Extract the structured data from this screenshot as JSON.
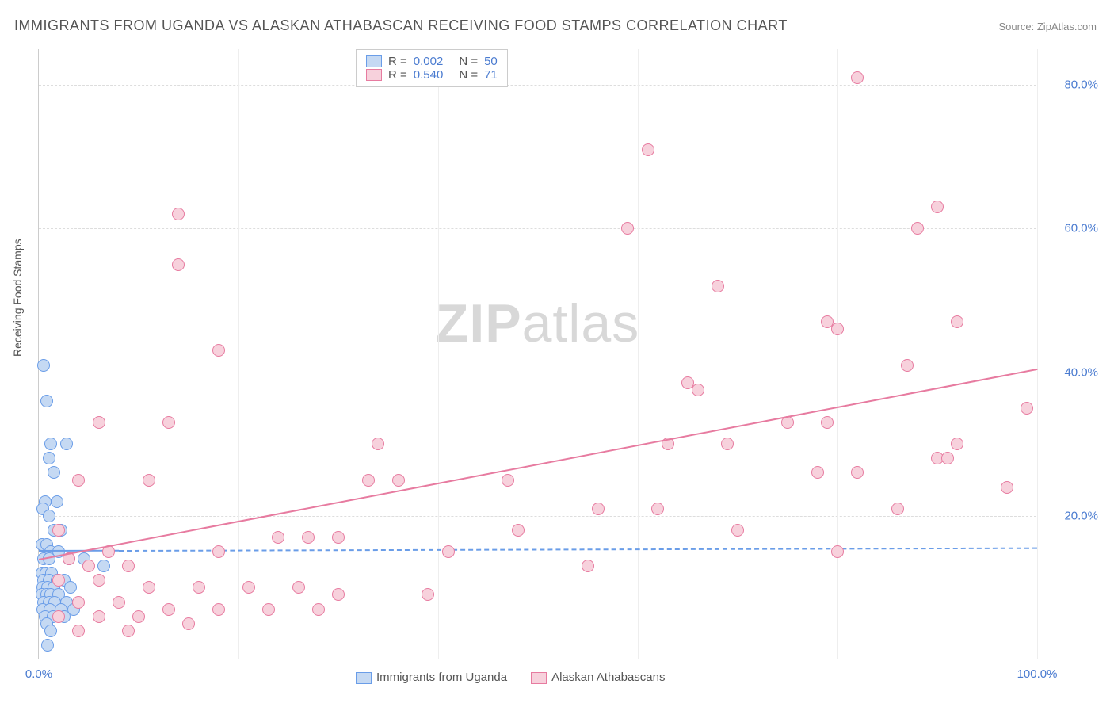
{
  "title": "IMMIGRANTS FROM UGANDA VS ALASKAN ATHABASCAN RECEIVING FOOD STAMPS CORRELATION CHART",
  "source": "Source: ZipAtlas.com",
  "ylabel_text": "Receiving Food Stamps",
  "watermark_zip": "ZIP",
  "watermark_atlas": "atlas",
  "chart": {
    "type": "scatter",
    "xlim": [
      0,
      100
    ],
    "ylim": [
      0,
      85
    ],
    "xticks": [
      0,
      100
    ],
    "xtick_labels": [
      "0.0%",
      "100.0%"
    ],
    "yticks": [
      20,
      40,
      60,
      80
    ],
    "ytick_labels": [
      "20.0%",
      "40.0%",
      "60.0%",
      "80.0%"
    ],
    "vgrid": [
      20,
      40,
      60,
      80,
      100
    ],
    "background_color": "#ffffff",
    "grid_color": "#dddddd",
    "axis_color": "#cccccc",
    "tick_color": "#4a7bd0",
    "series": [
      {
        "name": "Immigrants from Uganda",
        "label": "Immigrants from Uganda",
        "fill": "#c5d9f3",
        "stroke": "#6a9de8",
        "R_label": "R =",
        "R": "0.002",
        "N_label": "N =",
        "N": "50",
        "trend": {
          "x1": 0,
          "y1": 15.2,
          "x2": 100,
          "y2": 15.6,
          "solid_until_x": 8,
          "dashed": true
        },
        "points": [
          {
            "x": 0.5,
            "y": 41
          },
          {
            "x": 0.8,
            "y": 36
          },
          {
            "x": 1.2,
            "y": 30
          },
          {
            "x": 2.8,
            "y": 30
          },
          {
            "x": 1.0,
            "y": 28
          },
          {
            "x": 1.5,
            "y": 26
          },
          {
            "x": 0.6,
            "y": 22
          },
          {
            "x": 1.8,
            "y": 22
          },
          {
            "x": 0.4,
            "y": 21
          },
          {
            "x": 1.0,
            "y": 20
          },
          {
            "x": 1.5,
            "y": 18
          },
          {
            "x": 2.2,
            "y": 18
          },
          {
            "x": 0.3,
            "y": 16
          },
          {
            "x": 0.8,
            "y": 16
          },
          {
            "x": 1.2,
            "y": 15
          },
          {
            "x": 2.0,
            "y": 15
          },
          {
            "x": 0.5,
            "y": 14
          },
          {
            "x": 1.0,
            "y": 14
          },
          {
            "x": 3.0,
            "y": 14
          },
          {
            "x": 4.5,
            "y": 14
          },
          {
            "x": 0.3,
            "y": 12
          },
          {
            "x": 0.7,
            "y": 12
          },
          {
            "x": 1.3,
            "y": 12
          },
          {
            "x": 6.5,
            "y": 13
          },
          {
            "x": 0.5,
            "y": 11
          },
          {
            "x": 1.0,
            "y": 11
          },
          {
            "x": 1.8,
            "y": 11
          },
          {
            "x": 2.5,
            "y": 11
          },
          {
            "x": 0.4,
            "y": 10
          },
          {
            "x": 0.9,
            "y": 10
          },
          {
            "x": 1.5,
            "y": 10
          },
          {
            "x": 3.2,
            "y": 10
          },
          {
            "x": 0.3,
            "y": 9
          },
          {
            "x": 0.8,
            "y": 9
          },
          {
            "x": 1.2,
            "y": 9
          },
          {
            "x": 2.0,
            "y": 9
          },
          {
            "x": 0.5,
            "y": 8
          },
          {
            "x": 1.0,
            "y": 8
          },
          {
            "x": 1.6,
            "y": 8
          },
          {
            "x": 2.8,
            "y": 8
          },
          {
            "x": 0.4,
            "y": 7
          },
          {
            "x": 1.1,
            "y": 7
          },
          {
            "x": 2.2,
            "y": 7
          },
          {
            "x": 3.5,
            "y": 7
          },
          {
            "x": 0.6,
            "y": 6
          },
          {
            "x": 1.4,
            "y": 6
          },
          {
            "x": 2.5,
            "y": 6
          },
          {
            "x": 0.8,
            "y": 5
          },
          {
            "x": 1.2,
            "y": 4
          },
          {
            "x": 0.9,
            "y": 2
          }
        ]
      },
      {
        "name": "Alaskan Athabascans",
        "label": "Alaskan Athabascans",
        "fill": "#f7d1dc",
        "stroke": "#e77ba0",
        "R_label": "R =",
        "R": "0.540",
        "N_label": "N =",
        "N": "71",
        "trend": {
          "x1": 0,
          "y1": 14,
          "x2": 100,
          "y2": 40.5,
          "dashed": false
        },
        "points": [
          {
            "x": 82,
            "y": 81
          },
          {
            "x": 61,
            "y": 71
          },
          {
            "x": 90,
            "y": 63
          },
          {
            "x": 14,
            "y": 62
          },
          {
            "x": 88,
            "y": 60
          },
          {
            "x": 59,
            "y": 60
          },
          {
            "x": 14,
            "y": 55
          },
          {
            "x": 68,
            "y": 52
          },
          {
            "x": 79,
            "y": 47
          },
          {
            "x": 80,
            "y": 46
          },
          {
            "x": 92,
            "y": 47
          },
          {
            "x": 18,
            "y": 43
          },
          {
            "x": 87,
            "y": 41
          },
          {
            "x": 65,
            "y": 38.5
          },
          {
            "x": 66,
            "y": 37.5
          },
          {
            "x": 99,
            "y": 35
          },
          {
            "x": 6,
            "y": 33
          },
          {
            "x": 13,
            "y": 33
          },
          {
            "x": 75,
            "y": 33
          },
          {
            "x": 79,
            "y": 33
          },
          {
            "x": 69,
            "y": 30
          },
          {
            "x": 34,
            "y": 30
          },
          {
            "x": 63,
            "y": 30
          },
          {
            "x": 92,
            "y": 30
          },
          {
            "x": 4,
            "y": 25
          },
          {
            "x": 11,
            "y": 25
          },
          {
            "x": 33,
            "y": 25
          },
          {
            "x": 36,
            "y": 25
          },
          {
            "x": 47,
            "y": 25
          },
          {
            "x": 78,
            "y": 26
          },
          {
            "x": 90,
            "y": 28
          },
          {
            "x": 91,
            "y": 28
          },
          {
            "x": 82,
            "y": 26
          },
          {
            "x": 97,
            "y": 24
          },
          {
            "x": 56,
            "y": 21
          },
          {
            "x": 62,
            "y": 21
          },
          {
            "x": 86,
            "y": 21
          },
          {
            "x": 70,
            "y": 18
          },
          {
            "x": 48,
            "y": 18
          },
          {
            "x": 2,
            "y": 18
          },
          {
            "x": 24,
            "y": 17
          },
          {
            "x": 27,
            "y": 17
          },
          {
            "x": 30,
            "y": 17
          },
          {
            "x": 7,
            "y": 15
          },
          {
            "x": 18,
            "y": 15
          },
          {
            "x": 80,
            "y": 15
          },
          {
            "x": 3,
            "y": 14
          },
          {
            "x": 5,
            "y": 13
          },
          {
            "x": 9,
            "y": 13
          },
          {
            "x": 41,
            "y": 15
          },
          {
            "x": 55,
            "y": 13
          },
          {
            "x": 2,
            "y": 11
          },
          {
            "x": 6,
            "y": 11
          },
          {
            "x": 11,
            "y": 10
          },
          {
            "x": 16,
            "y": 10
          },
          {
            "x": 21,
            "y": 10
          },
          {
            "x": 26,
            "y": 10
          },
          {
            "x": 30,
            "y": 9
          },
          {
            "x": 39,
            "y": 9
          },
          {
            "x": 4,
            "y": 8
          },
          {
            "x": 8,
            "y": 8
          },
          {
            "x": 13,
            "y": 7
          },
          {
            "x": 18,
            "y": 7
          },
          {
            "x": 23,
            "y": 7
          },
          {
            "x": 28,
            "y": 7
          },
          {
            "x": 2,
            "y": 6
          },
          {
            "x": 6,
            "y": 6
          },
          {
            "x": 10,
            "y": 6
          },
          {
            "x": 15,
            "y": 5
          },
          {
            "x": 4,
            "y": 4
          },
          {
            "x": 9,
            "y": 4
          }
        ]
      }
    ]
  }
}
